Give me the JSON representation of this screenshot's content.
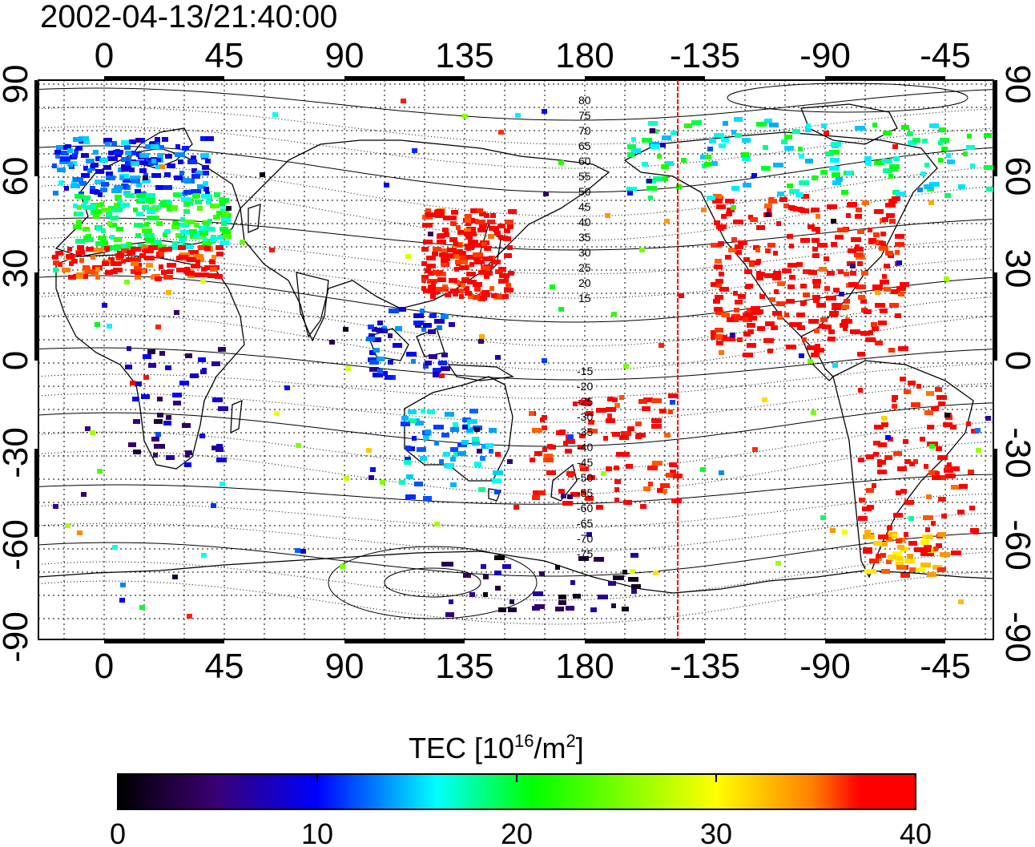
{
  "timestamp": "2002-04-13/21:40:00",
  "top_longitude_ticks": [
    "0",
    "45",
    "90",
    "135",
    "180",
    "-135",
    "-90",
    "-45"
  ],
  "bottom_longitude_ticks": [
    "0",
    "45",
    "90",
    "135",
    "180",
    "-135",
    "-90",
    "-45"
  ],
  "left_latitude_ticks": [
    "90",
    "60",
    "30",
    "0",
    "-30",
    "-60",
    "-90"
  ],
  "right_latitude_ticks": [
    "90",
    "60",
    "30",
    "0",
    "-30",
    "-60",
    "-90"
  ],
  "contour_labels_north": [
    "80",
    "75",
    "70",
    "65",
    "60",
    "55",
    "50",
    "45",
    "40",
    "35",
    "30",
    "25",
    "20",
    "15"
  ],
  "contour_labels_south": [
    "-15",
    "-20",
    "-25",
    "-30",
    "-35",
    "-40",
    "-45",
    "-50",
    "-55",
    "-60",
    "-65",
    "-70",
    "-75"
  ],
  "colorbar": {
    "title_prefix": "TEC  [10",
    "title_sup1": "16",
    "title_mid": "/m",
    "title_sup2": "2",
    "title_suffix": "]",
    "tick_labels": [
      "0",
      "10",
      "20",
      "30",
      "40"
    ],
    "min": 0,
    "max": 40,
    "colors": [
      "#000000",
      "#3a0070",
      "#0000ff",
      "#00ffff",
      "#00ff00",
      "#ffff00",
      "#ff8000",
      "#ff0000"
    ]
  },
  "terminator_color": "#ff0000",
  "tec_patches": [
    {
      "region": "europe-north",
      "tec": 12
    },
    {
      "region": "europe-central",
      "tec": 20
    },
    {
      "region": "mediterranean",
      "tec": 38
    },
    {
      "region": "east-asia",
      "tec": 39
    },
    {
      "region": "north-america",
      "tec": 39
    },
    {
      "region": "canada-arctic",
      "tec": 18
    },
    {
      "region": "south-america",
      "tec": 39
    },
    {
      "region": "patagonia",
      "tec": 34
    },
    {
      "region": "new-zealand",
      "tec": 39
    },
    {
      "region": "southeast-asia",
      "tec": 10
    },
    {
      "region": "australia-west",
      "tec": 14
    },
    {
      "region": "antarctica-pacific",
      "tec": 4
    },
    {
      "region": "africa-south",
      "tec": 6
    }
  ]
}
